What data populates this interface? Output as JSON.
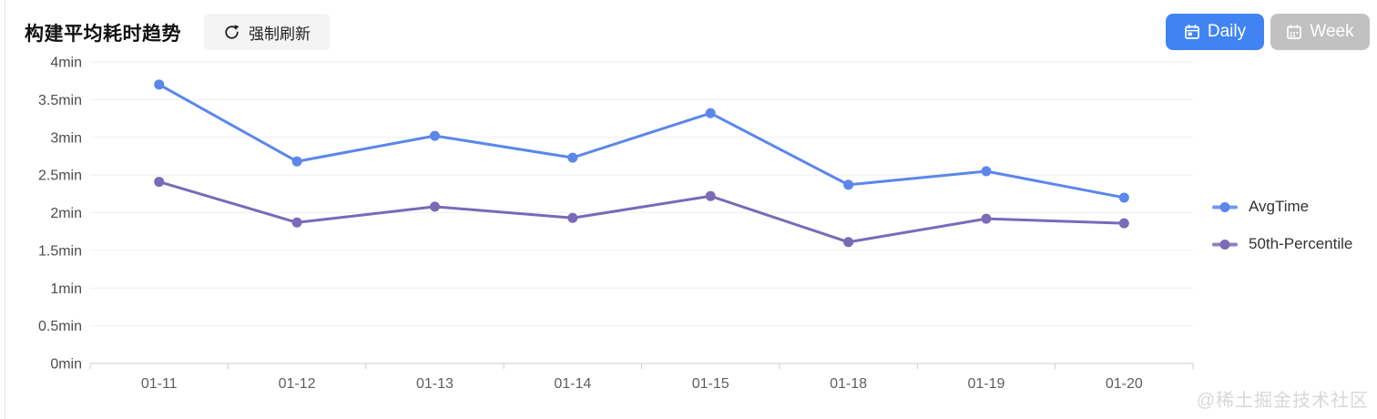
{
  "header": {
    "title": "构建平均耗时趋势",
    "refresh_button": "强制刷新",
    "daily_button": "Daily",
    "week_button": "Week"
  },
  "colors": {
    "avg_line": "#5b87ea",
    "p50_line": "#7a6ab8",
    "daily_button_bg": "#4084f2",
    "week_button_bg": "#c1c1c1",
    "gridline": "#efefef",
    "axis_line": "#cccccc"
  },
  "chart_data": {
    "type": "line",
    "categories": [
      "01-11",
      "01-12",
      "01-13",
      "01-14",
      "01-15",
      "01-18",
      "01-19",
      "01-20"
    ],
    "series": [
      {
        "name": "AvgTime",
        "color": "#5b87ea",
        "values": [
          3.7,
          2.68,
          3.02,
          2.73,
          3.32,
          2.37,
          2.55,
          2.2
        ]
      },
      {
        "name": "50th-Percentile",
        "color": "#7a6ab8",
        "values": [
          2.41,
          1.87,
          2.08,
          1.93,
          2.22,
          1.61,
          1.92,
          1.86
        ]
      }
    ],
    "title": "构建平均耗时趋势",
    "xlabel": "",
    "ylabel": "",
    "ylim": [
      0,
      4
    ],
    "y_tick_step": 0.5,
    "y_tick_suffix": "min",
    "y_tick_labels": [
      "0min",
      "0.5min",
      "1min",
      "1.5min",
      "2min",
      "2.5min",
      "3min",
      "3.5min",
      "4min"
    ],
    "grid": true,
    "legend_position": "right",
    "legend": [
      "AvgTime",
      "50th-Percentile"
    ]
  },
  "watermark": "@稀土掘金技术社区"
}
